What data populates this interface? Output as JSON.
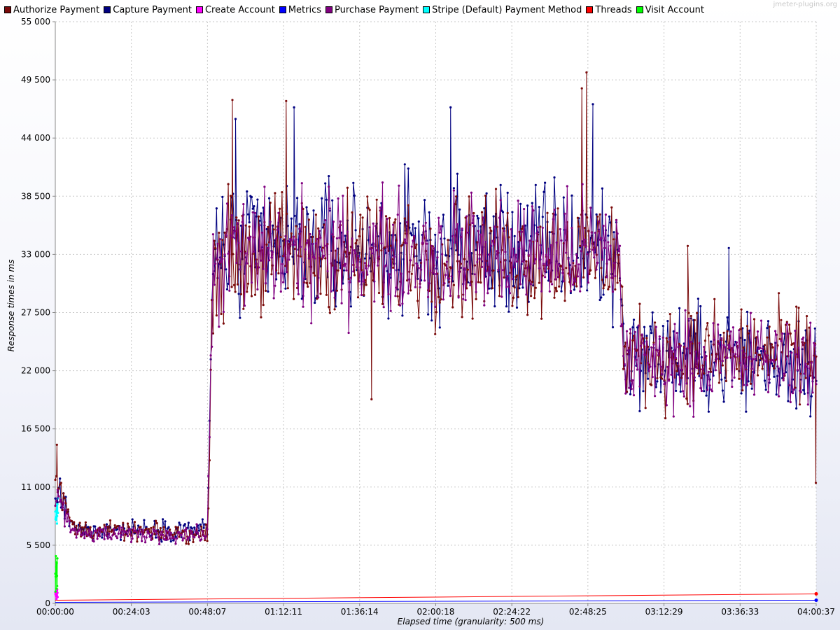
{
  "watermark": "jmeter-plugins.org",
  "chart_data": {
    "type": "line",
    "xlabel": "Elapsed time (granularity: 500 ms)",
    "ylabel": "Response times in ms",
    "x_range": [
      "00:00:00",
      "04:00:37"
    ],
    "x_ticks": [
      "00:00:00",
      "00:24:03",
      "00:48:07",
      "01:12:11",
      "01:36:14",
      "02:00:18",
      "02:24:22",
      "02:48:25",
      "03:12:29",
      "03:36:33",
      "04:00:37"
    ],
    "ylim": [
      0,
      55000
    ],
    "y_ticks": [
      0,
      5500,
      11000,
      16500,
      22000,
      27500,
      33000,
      38500,
      44000,
      49500,
      55000
    ],
    "y_tick_labels": [
      "0",
      "5 500",
      "11 000",
      "16 500",
      "22 000",
      "27 500",
      "33 000",
      "38 500",
      "44 000",
      "49 500",
      "55 000"
    ],
    "grid": true,
    "legend_position": "top",
    "series": [
      {
        "name": "Authorize Payment",
        "color": "#7a0a0a",
        "profile": [
          {
            "t": "00:00:00",
            "mean": 11500,
            "spread": 2500
          },
          {
            "t": "00:06:00",
            "mean": 7000,
            "spread": 700
          },
          {
            "t": "00:48:07",
            "mean": 6500,
            "spread": 700
          },
          {
            "t": "00:50:00",
            "mean": 33000,
            "spread": 5000
          },
          {
            "t": "02:58:00",
            "mean": 33000,
            "spread": 5000
          },
          {
            "t": "03:00:00",
            "mean": 23500,
            "spread": 3800
          },
          {
            "t": "04:00:37",
            "mean": 23500,
            "spread": 3800
          }
        ],
        "peaks": [
          {
            "t": "00:00:30",
            "value": 15000
          },
          {
            "t": "00:56:00",
            "value": 47600
          },
          {
            "t": "01:13:00",
            "value": 47500
          },
          {
            "t": "02:48:00",
            "value": 50200
          },
          {
            "t": "02:46:30",
            "value": 48700
          },
          {
            "t": "01:40:00",
            "value": 19300
          },
          {
            "t": "03:20:00",
            "value": 33800
          },
          {
            "t": "04:00:30",
            "value": 11400
          }
        ]
      },
      {
        "name": "Capture Payment",
        "color": "#000080",
        "profile": [
          {
            "t": "00:00:00",
            "mean": 11000,
            "spread": 2000
          },
          {
            "t": "00:06:00",
            "mean": 7000,
            "spread": 700
          },
          {
            "t": "00:48:07",
            "mean": 7000,
            "spread": 900
          },
          {
            "t": "00:50:00",
            "mean": 33500,
            "spread": 5500
          },
          {
            "t": "02:58:00",
            "mean": 33500,
            "spread": 5500
          },
          {
            "t": "03:00:00",
            "mean": 23500,
            "spread": 4000
          },
          {
            "t": "04:00:37",
            "mean": 23000,
            "spread": 4000
          }
        ],
        "peaks": [
          {
            "t": "00:57:00",
            "value": 45800
          },
          {
            "t": "01:15:30",
            "value": 46900
          },
          {
            "t": "02:05:00",
            "value": 46900
          },
          {
            "t": "02:50:00",
            "value": 47200
          },
          {
            "t": "03:33:00",
            "value": 33600
          }
        ]
      },
      {
        "name": "Create Account",
        "color": "#ff00ff",
        "profile": [
          {
            "t": "00:00:00",
            "mean": 800,
            "spread": 400
          },
          {
            "t": "00:00:45",
            "mean": 800,
            "spread": 400
          }
        ],
        "peaks": []
      },
      {
        "name": "Metrics",
        "color": "#0000ff",
        "profile": [
          {
            "t": "00:00:00",
            "mean": 100,
            "spread": 0
          },
          {
            "t": "04:00:37",
            "mean": 300,
            "spread": 0
          }
        ],
        "peaks": []
      },
      {
        "name": "Purchase Payment",
        "color": "#800080",
        "profile": [
          {
            "t": "00:00:00",
            "mean": 10500,
            "spread": 1500
          },
          {
            "t": "00:06:00",
            "mean": 6500,
            "spread": 600
          },
          {
            "t": "00:48:07",
            "mean": 6500,
            "spread": 700
          },
          {
            "t": "00:50:00",
            "mean": 33000,
            "spread": 4800
          },
          {
            "t": "02:58:00",
            "mean": 33000,
            "spread": 4800
          },
          {
            "t": "03:00:00",
            "mean": 23000,
            "spread": 3600
          },
          {
            "t": "04:00:37",
            "mean": 23000,
            "spread": 3600
          }
        ],
        "peaks": []
      },
      {
        "name": "Stripe (Default) Payment Method",
        "color": "#00ffff",
        "profile": [
          {
            "t": "00:00:00",
            "mean": 8500,
            "spread": 1500
          },
          {
            "t": "00:00:50",
            "mean": 8500,
            "spread": 1500
          }
        ],
        "peaks": []
      },
      {
        "name": "Threads",
        "color": "#ff0000",
        "profile": [
          {
            "t": "00:00:00",
            "mean": 300,
            "spread": 0
          },
          {
            "t": "04:00:37",
            "mean": 900,
            "spread": 0
          }
        ],
        "peaks": []
      },
      {
        "name": "Visit Account",
        "color": "#00ff00",
        "profile": [
          {
            "t": "00:00:00",
            "mean": 2500,
            "spread": 1800
          },
          {
            "t": "00:00:40",
            "mean": 2500,
            "spread": 1800
          }
        ],
        "peaks": []
      }
    ]
  }
}
